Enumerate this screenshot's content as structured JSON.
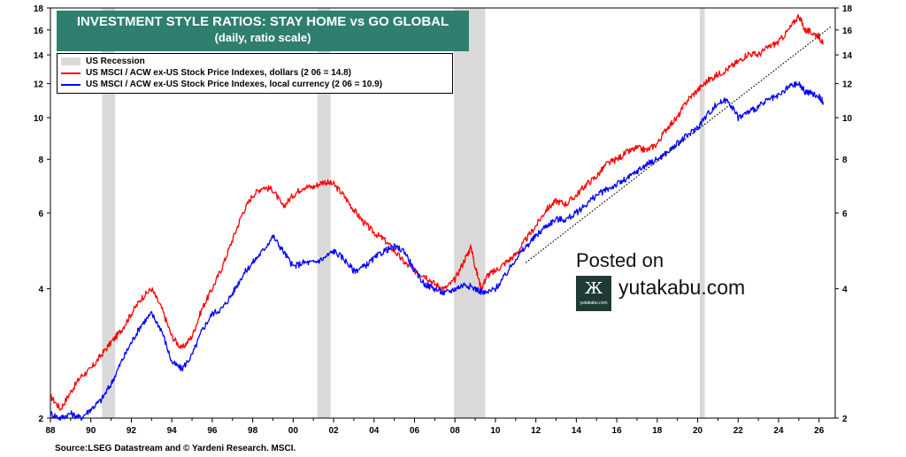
{
  "chart_data": {
    "type": "line",
    "title": "INVESTMENT STYLE RATIOS: STAY HOME vs GO GLOBAL",
    "subtitle": "(daily, ratio scale)",
    "scale": "log",
    "ylim": [
      2,
      18
    ],
    "xlim": [
      1988,
      2026.8
    ],
    "x_tick_labels": [
      "88",
      "90",
      "92",
      "94",
      "96",
      "98",
      "00",
      "02",
      "04",
      "06",
      "08",
      "10",
      "12",
      "14",
      "16",
      "18",
      "20",
      "22",
      "24",
      "26"
    ],
    "y_tick_labels": [
      "2",
      "4",
      "6",
      "8",
      "10",
      "12",
      "14",
      "16",
      "18"
    ],
    "grid": false,
    "legend_position": "top-left",
    "recession_label": "US Recession",
    "recessions": [
      [
        1990.55,
        1991.2
      ],
      [
        2001.2,
        2001.85
      ],
      [
        2007.95,
        2009.5
      ],
      [
        2020.1,
        2020.35
      ]
    ],
    "series": [
      {
        "name": "US MSCI / ACW ex-US Stock Price Indexes, dollars (2 06 = 14.8)",
        "color": "#ff0000",
        "x": [
          1988.0,
          1988.5,
          1989.0,
          1989.5,
          1990.0,
          1990.5,
          1991.0,
          1991.5,
          1992.0,
          1992.5,
          1993.0,
          1993.5,
          1994.0,
          1994.5,
          1995.0,
          1995.5,
          1996.0,
          1996.5,
          1997.0,
          1997.5,
          1998.0,
          1998.5,
          1999.0,
          1999.5,
          2000.0,
          2000.5,
          2001.0,
          2001.5,
          2002.0,
          2002.5,
          2003.0,
          2003.5,
          2004.0,
          2004.5,
          2005.0,
          2005.5,
          2006.0,
          2006.5,
          2007.0,
          2007.5,
          2008.0,
          2008.5,
          2008.8,
          2009.0,
          2009.3,
          2009.6,
          2010.0,
          2010.5,
          2011.0,
          2011.5,
          2012.0,
          2012.5,
          2013.0,
          2013.5,
          2014.0,
          2014.5,
          2015.0,
          2015.5,
          2016.0,
          2016.5,
          2017.0,
          2017.5,
          2018.0,
          2018.5,
          2019.0,
          2019.5,
          2020.0,
          2020.5,
          2021.0,
          2021.5,
          2022.0,
          2022.5,
          2023.0,
          2023.5,
          2024.0,
          2024.5,
          2025.0,
          2025.3,
          2025.6,
          2026.0,
          2026.2
        ],
        "values": [
          2.25,
          2.1,
          2.3,
          2.5,
          2.6,
          2.8,
          3.0,
          3.2,
          3.5,
          3.8,
          4.0,
          3.6,
          3.1,
          2.9,
          3.1,
          3.6,
          4.0,
          4.5,
          5.2,
          6.0,
          6.6,
          6.9,
          6.8,
          6.2,
          6.6,
          6.9,
          6.9,
          7.1,
          7.0,
          6.6,
          6.1,
          5.7,
          5.4,
          5.2,
          4.9,
          4.6,
          4.4,
          4.3,
          4.1,
          4.0,
          4.2,
          4.7,
          5.0,
          4.5,
          4.0,
          4.3,
          4.4,
          4.6,
          4.8,
          5.2,
          5.6,
          6.1,
          6.4,
          6.3,
          6.6,
          7.0,
          7.3,
          7.8,
          8.0,
          8.3,
          8.5,
          8.4,
          8.7,
          9.5,
          10.0,
          11.0,
          11.6,
          12.2,
          12.6,
          13.0,
          13.5,
          14.1,
          14.0,
          14.6,
          15.0,
          16.0,
          17.3,
          16.0,
          15.8,
          15.5,
          14.8
        ]
      },
      {
        "name": "US MSCI / ACW ex-US Stock Price Indexes, local currency (2 06 = 10.9)",
        "color": "#0000ff",
        "x": [
          1988.0,
          1988.5,
          1989.0,
          1989.5,
          1990.0,
          1990.5,
          1991.0,
          1991.5,
          1992.0,
          1992.5,
          1993.0,
          1993.5,
          1994.0,
          1994.5,
          1995.0,
          1995.5,
          1996.0,
          1996.5,
          1997.0,
          1997.5,
          1998.0,
          1998.5,
          1999.0,
          1999.5,
          2000.0,
          2000.5,
          2001.0,
          2001.5,
          2002.0,
          2002.5,
          2003.0,
          2003.5,
          2004.0,
          2004.5,
          2005.0,
          2005.5,
          2006.0,
          2006.5,
          2007.0,
          2007.5,
          2008.0,
          2008.5,
          2009.0,
          2009.5,
          2010.0,
          2010.5,
          2011.0,
          2011.5,
          2012.0,
          2012.5,
          2013.0,
          2013.5,
          2014.0,
          2014.5,
          2015.0,
          2015.5,
          2016.0,
          2016.5,
          2017.0,
          2017.5,
          2018.0,
          2018.5,
          2019.0,
          2019.5,
          2020.0,
          2020.5,
          2021.0,
          2021.5,
          2022.0,
          2022.5,
          2023.0,
          2023.5,
          2024.0,
          2024.5,
          2025.0,
          2025.3,
          2025.6,
          2026.0,
          2026.2
        ],
        "values": [
          2.05,
          2.0,
          2.05,
          2.0,
          2.1,
          2.2,
          2.4,
          2.7,
          3.0,
          3.3,
          3.5,
          3.2,
          2.7,
          2.6,
          2.8,
          3.2,
          3.5,
          3.6,
          3.9,
          4.3,
          4.6,
          4.9,
          5.3,
          4.9,
          4.5,
          4.6,
          4.6,
          4.7,
          4.9,
          4.7,
          4.4,
          4.5,
          4.7,
          4.9,
          5.0,
          4.9,
          4.4,
          4.1,
          4.0,
          3.9,
          4.0,
          4.1,
          4.0,
          3.9,
          4.0,
          4.3,
          4.7,
          5.0,
          5.3,
          5.6,
          5.8,
          5.8,
          6.0,
          6.3,
          6.6,
          6.8,
          7.0,
          7.2,
          7.5,
          7.8,
          8.0,
          8.3,
          8.7,
          9.1,
          9.5,
          10.2,
          10.8,
          11.0,
          10.0,
          10.3,
          10.6,
          11.0,
          11.2,
          11.8,
          12.0,
          11.5,
          11.4,
          11.2,
          10.9
        ]
      }
    ],
    "trendline": {
      "x": [
        2011.5,
        2026.6
      ],
      "values": [
        4.6,
        16.3
      ]
    }
  },
  "legend": {
    "recession": "US Recession",
    "dollars": "US MSCI / ACW ex-US Stock Price Indexes, dollars (2 06 = 14.8)",
    "local": "US MSCI / ACW ex-US Stock Price Indexes, local currency (2 06 = 10.9)"
  },
  "watermark": {
    "posted": "Posted on",
    "site": "yutakabu.com",
    "logo_glyph": "Ж",
    "logo_small": "yutakabu.com"
  },
  "source": "Source:LSEG Datastream and © Yardeni Research. MSCI.",
  "colors": {
    "title_bg": "#2e7f6f",
    "recession": "#d9d9d9",
    "dollars": "#ff0000",
    "local": "#0000ff"
  }
}
